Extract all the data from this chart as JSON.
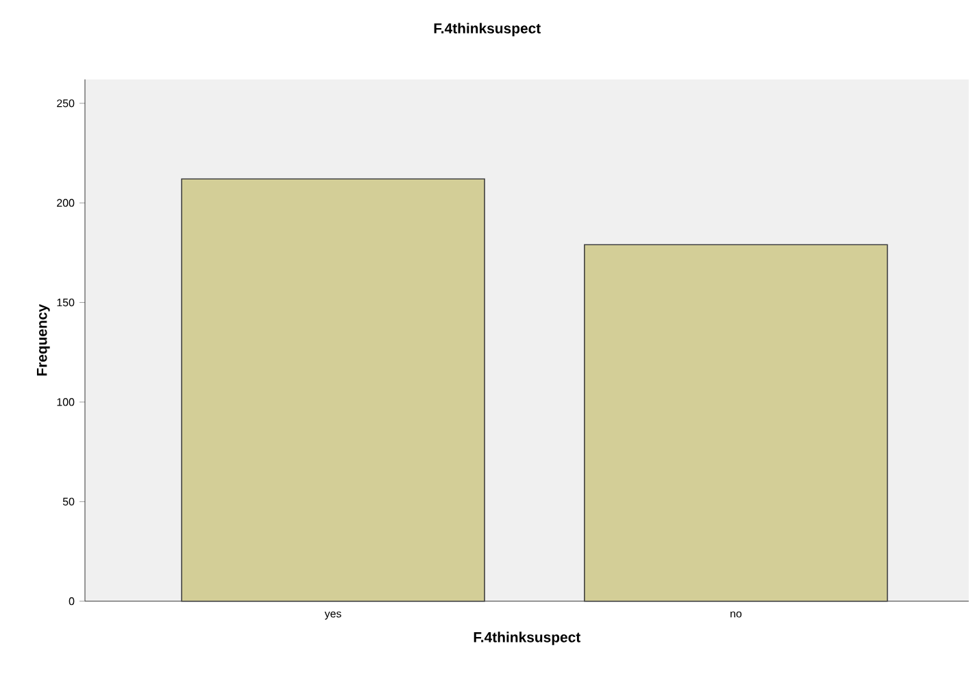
{
  "chart_data": {
    "type": "bar",
    "title": "F.4thinksuspect",
    "xlabel": "F.4thinksuspect",
    "ylabel": "Frequency",
    "categories": [
      "yes",
      "no"
    ],
    "values": [
      212,
      179
    ],
    "color": "#d3ce97",
    "ylim": [
      0,
      262
    ],
    "yticks": [
      0,
      50,
      100,
      150,
      200,
      250
    ],
    "grid": false
  }
}
